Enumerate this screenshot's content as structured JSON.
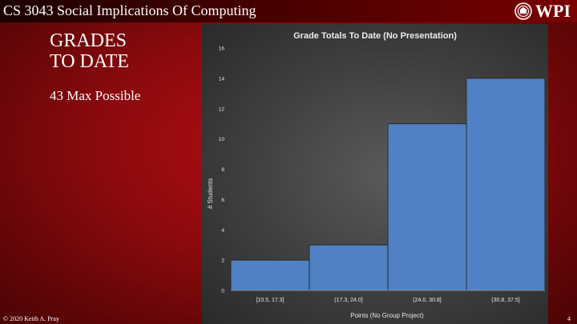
{
  "header": {
    "course_title": "CS 3043 Social Implications Of Computing",
    "logo_text": "WPI"
  },
  "slide": {
    "title_line1": "GRADES",
    "title_line2": "TO DATE",
    "subtitle": "43 Max Possible"
  },
  "footer": {
    "copyright": "© 2020 Keith A. Pray",
    "page_number": "4"
  },
  "colors": {
    "bar_fill": "#4f81c4",
    "bar_stroke": "#2a2a2a"
  },
  "chart_data": {
    "type": "bar",
    "title": "Grade Totals To Date (No Presentation)",
    "xlabel": "Points (No Group Project)",
    "ylabel": "# Students",
    "categories": [
      "[10.5, 17.3]",
      "(17.3, 24.0]",
      "(24.0, 30.8]",
      "(30.8, 37.5]"
    ],
    "values": [
      2,
      3,
      11,
      14
    ],
    "ylim": [
      0,
      16
    ],
    "yticks": [
      0,
      2,
      4,
      6,
      8,
      10,
      12,
      14,
      16
    ],
    "grid": false,
    "legend": "none"
  }
}
